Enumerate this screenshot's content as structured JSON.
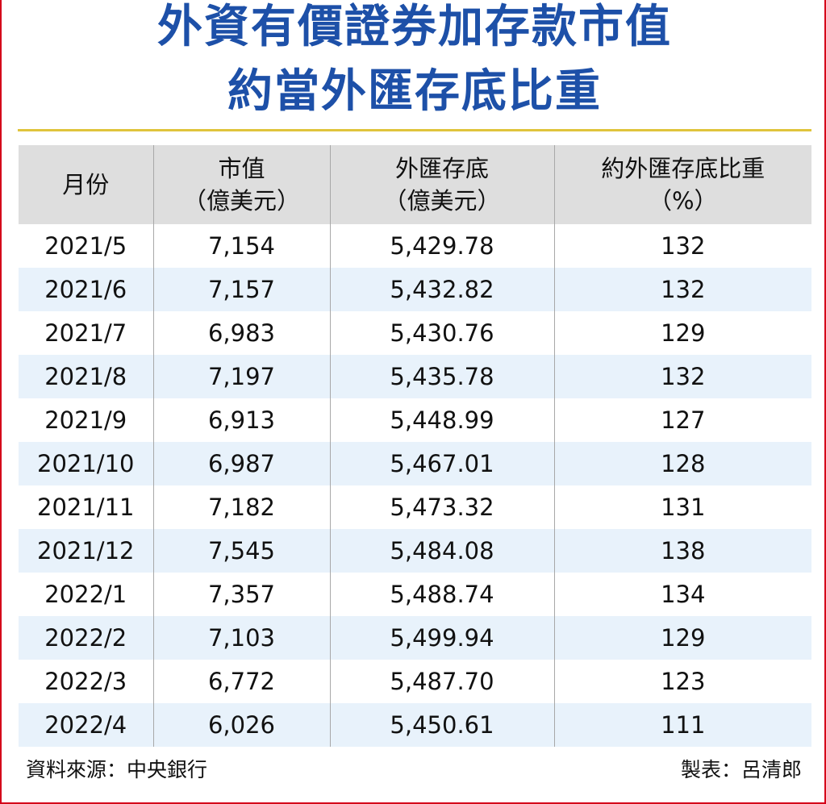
{
  "title": {
    "line1": "外資有價證券加存款市值",
    "line2": "約當外匯存底比重"
  },
  "colors": {
    "title": "#1d50a8",
    "rule": "#e0c43c",
    "frame": "#d4001a",
    "header_bg": "#dedede",
    "stripe_bg": "#e8f2fb"
  },
  "chart_data": {
    "type": "table",
    "columns": [
      {
        "label": "月份",
        "unit": ""
      },
      {
        "label": "市值",
        "unit": "（億美元）"
      },
      {
        "label": "外匯存底",
        "unit": "（億美元）"
      },
      {
        "label": "約外匯存底比重",
        "unit": "（%）"
      }
    ],
    "rows": [
      [
        "2021/5",
        "7,154",
        "5,429.78",
        "132"
      ],
      [
        "2021/6",
        "7,157",
        "5,432.82",
        "132"
      ],
      [
        "2021/7",
        "6,983",
        "5,430.76",
        "129"
      ],
      [
        "2021/8",
        "7,197",
        "5,435.78",
        "132"
      ],
      [
        "2021/9",
        "6,913",
        "5,448.99",
        "127"
      ],
      [
        "2021/10",
        "6,987",
        "5,467.01",
        "128"
      ],
      [
        "2021/11",
        "7,182",
        "5,473.32",
        "131"
      ],
      [
        "2021/12",
        "7,545",
        "5,484.08",
        "138"
      ],
      [
        "2022/1",
        "7,357",
        "5,488.74",
        "134"
      ],
      [
        "2022/2",
        "7,103",
        "5,499.94",
        "129"
      ],
      [
        "2022/3",
        "6,772",
        "5,487.70",
        "123"
      ],
      [
        "2022/4",
        "6,026",
        "5,450.61",
        "111"
      ]
    ]
  },
  "footer": {
    "source": "資料來源：中央銀行",
    "credit": "製表：呂清郎"
  }
}
